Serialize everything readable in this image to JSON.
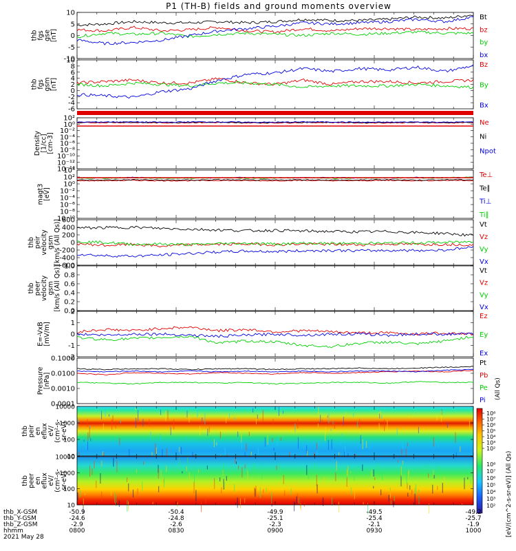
{
  "title": "P1 (TH-B) fields and ground moments overview",
  "colors": {
    "black": "#000000",
    "red": "#e00000",
    "green": "#00d000",
    "blue": "#0000e0"
  },
  "chart_data": [
    {
      "type": "line",
      "panel": "fgs-gse",
      "ylabel_lines": [
        "thb",
        "fgs",
        "gse",
        "[nT]"
      ],
      "ylim": [
        -10,
        10
      ],
      "yticks": [
        "10",
        "5",
        "0",
        "-5",
        "-10"
      ],
      "legend": [
        {
          "label": "Bt",
          "color": "#000000"
        },
        {
          "label": "bz",
          "color": "#e00000"
        },
        {
          "label": "by",
          "color": "#00d000"
        },
        {
          "label": "bx",
          "color": "#0000e0"
        }
      ],
      "series": [
        {
          "name": "Bt",
          "color": "#000000",
          "values": [
            4.5,
            5,
            6,
            5.5,
            5.5,
            6,
            5.5,
            6,
            7,
            6.5,
            6.5,
            7,
            8,
            7.5,
            9
          ]
        },
        {
          "name": "bz",
          "color": "#e00000",
          "values": [
            2.5,
            2,
            3.5,
            2,
            2.5,
            3.5,
            2,
            1.5,
            3,
            2,
            3,
            3,
            2.5,
            3,
            3
          ]
        },
        {
          "name": "by",
          "color": "#00d000",
          "values": [
            -0.5,
            1,
            0.5,
            1,
            -0.5,
            0.5,
            1,
            0.5,
            0,
            1,
            0.5,
            1,
            1.5,
            1,
            1
          ]
        },
        {
          "name": "bx",
          "color": "#0000e0",
          "values": [
            -2,
            -3.5,
            -3,
            -2,
            0,
            2,
            3,
            4,
            5.5,
            5,
            5.5,
            6,
            7,
            6,
            8
          ]
        }
      ]
    },
    {
      "type": "line",
      "panel": "fgs-gsm",
      "ylabel_lines": [
        "thb",
        "fgs",
        "gsm",
        "[nT]"
      ],
      "ylim": [
        -7,
        10
      ],
      "yticks": [
        "10",
        "8",
        "6",
        "4",
        "2",
        "0",
        "-2",
        "-4",
        "-6"
      ],
      "legend": [
        {
          "label": "Bz",
          "color": "#e00000"
        },
        {
          "label": "By",
          "color": "#00d000"
        },
        {
          "label": "Bx",
          "color": "#0000e0"
        }
      ],
      "series": [
        {
          "name": "Bz",
          "color": "#e00000",
          "values": [
            2,
            2.5,
            3,
            2,
            2,
            3.5,
            2,
            1.5,
            3,
            1.5,
            2.5,
            2.5,
            2,
            2.5,
            3
          ]
        },
        {
          "name": "By",
          "color": "#00d000",
          "values": [
            1.5,
            1,
            2,
            1.5,
            1,
            2,
            2,
            1.5,
            0.5,
            1,
            1,
            1,
            1.5,
            1,
            0.5
          ]
        },
        {
          "name": "Bx",
          "color": "#0000e0",
          "values": [
            -2,
            -2.5,
            -3,
            -1,
            0,
            3,
            5,
            5.5,
            7,
            6,
            7,
            6.5,
            7.5,
            6,
            8
          ]
        }
      ]
    },
    {
      "type": "line",
      "panel": "density",
      "ylabel_lines": [
        "Density",
        "[1/cc]",
        "[cm-3]"
      ],
      "ylim": [
        -14,
        2
      ],
      "log": true,
      "yticks": [
        "10²",
        "10⁰",
        "10⁻²",
        "10⁻⁴",
        "10⁻⁶",
        "10⁻⁸",
        "10⁻¹⁰",
        "10⁻¹²",
        "10⁻¹⁴"
      ],
      "legend": [
        {
          "label": "Ne",
          "color": "#e00000"
        },
        {
          "label": "Ni",
          "color": "#000000"
        },
        {
          "label": "Npot",
          "color": "#0000e0"
        },
        {
          "label": "",
          "color": "#000000"
        }
      ],
      "series": [
        {
          "name": "Ne",
          "color": "#e00000",
          "values": [
            0.4,
            0.5,
            0.5,
            0.4,
            0.5,
            0.5,
            0.4,
            0.4,
            0.5,
            0.5,
            0.4,
            0.4,
            0.5,
            0.4,
            0.5
          ]
        },
        {
          "name": "Ni",
          "color": "#000000",
          "values": [
            0.5,
            0.6,
            0.6,
            0.5,
            0.6,
            0.6,
            0.5,
            0.5,
            0.6,
            0.6,
            0.5,
            0.5,
            0.6,
            0.5,
            0.6
          ]
        },
        {
          "name": "Npot",
          "color": "#0000e0",
          "values": [
            0.6,
            0.7,
            0.7,
            0.6,
            0.7,
            0.7,
            0.6,
            0.6,
            0.7,
            0.7,
            0.6,
            0.6,
            0.7,
            0.6,
            0.7
          ]
        }
      ]
    },
    {
      "type": "line",
      "panel": "temperature",
      "ylabel_lines": [
        "magt3",
        "[eV]"
      ],
      "ylim": [
        -10,
        5
      ],
      "log": true,
      "yticks": [
        "10⁴",
        "10²",
        "10⁰",
        "10⁻²",
        "10⁻⁴",
        "10⁻⁶",
        "10⁻⁸",
        "10⁻¹⁰"
      ],
      "legend": [
        {
          "label": "Te⊥",
          "color": "#e00000"
        },
        {
          "label": "Te∥",
          "color": "#000000"
        },
        {
          "label": "Ti⊥",
          "color": "#0000e0"
        },
        {
          "label": "Ti∥",
          "color": "#00d000"
        }
      ],
      "series": [
        {
          "name": "Te⊥",
          "color": "#e00000",
          "values": [
            1.7,
            1.7,
            1.8,
            1.7,
            1.7,
            1.8,
            1.7,
            1.7,
            1.8,
            1.7,
            1.7,
            1.8,
            1.7,
            1.8,
            1.8
          ]
        },
        {
          "name": "Te∥",
          "color": "#000000",
          "values": [
            1.9,
            1.9,
            2,
            1.9,
            1.9,
            2,
            1.9,
            1.9,
            2,
            1.9,
            1.9,
            2,
            1.9,
            2,
            2
          ]
        },
        {
          "name": "Ti⊥",
          "color": "#0000e0",
          "values": [
            2.6,
            2.6,
            2.7,
            2.6,
            2.6,
            2.6,
            2.7,
            2.6,
            2.6,
            2.7,
            2.6,
            2.6,
            2.7,
            2.6,
            2.7
          ]
        },
        {
          "name": "Ti∥",
          "color": "#00d000",
          "values": [
            2.5,
            2.5,
            2.6,
            2.5,
            2.5,
            2.6,
            2.5,
            2.5,
            2.6,
            2.5,
            2.5,
            2.6,
            2.5,
            2.6,
            2.8
          ]
        }
      ]
    },
    {
      "type": "line",
      "panel": "peir-velocity",
      "ylabel_lines": [
        "thb",
        "peir",
        "velocity",
        "gsm",
        "[km/s (All Qs)]"
      ],
      "ylim": [
        -600,
        600
      ],
      "yticks": [
        "600",
        "400",
        "200",
        "0",
        "-200",
        "-400",
        "-600"
      ],
      "legend": [
        {
          "label": "Vt",
          "color": "#000000"
        },
        {
          "label": "Vz",
          "color": "#e00000"
        },
        {
          "label": "Vy",
          "color": "#00d000"
        },
        {
          "label": "Vx",
          "color": "#0000e0"
        }
      ],
      "series": [
        {
          "name": "Vt",
          "color": "#000000",
          "values": [
            380,
            390,
            400,
            370,
            350,
            330,
            310,
            320,
            300,
            290,
            280,
            290,
            260,
            240,
            180
          ]
        },
        {
          "name": "Vz",
          "color": "#e00000",
          "values": [
            -30,
            -80,
            -50,
            -100,
            -60,
            -50,
            -40,
            -60,
            -40,
            -50,
            -60,
            -40,
            -50,
            -50,
            -60
          ]
        },
        {
          "name": "Vy",
          "color": "#00d000",
          "values": [
            20,
            0,
            -50,
            -40,
            -60,
            -30,
            -20,
            -40,
            -20,
            -30,
            -20,
            -20,
            -10,
            0,
            20
          ]
        },
        {
          "name": "Vx",
          "color": "#0000e0",
          "values": [
            -310,
            -350,
            -360,
            -330,
            -290,
            -250,
            -230,
            -240,
            -220,
            -210,
            -220,
            -210,
            -210,
            -200,
            -120
          ]
        }
      ]
    },
    {
      "type": "line",
      "panel": "peer-velocity",
      "ylabel_lines": [
        "thb",
        "peer",
        "velocity",
        "gsm",
        "[km/s (All Qs)]"
      ],
      "ylim": [
        0,
        1
      ],
      "yticks": [
        "1.0",
        "0.8",
        "0.6",
        "0.4",
        "0.2",
        "0.0"
      ],
      "legend": [
        {
          "label": "Vt",
          "color": "#000000"
        },
        {
          "label": "Vz",
          "color": "#e00000"
        },
        {
          "label": "Vy",
          "color": "#00d000"
        },
        {
          "label": "Vx",
          "color": "#0000e0"
        }
      ],
      "series": []
    },
    {
      "type": "line",
      "panel": "efield",
      "ylabel_lines": [
        "E=-VxB",
        "[mV/m]"
      ],
      "ylim": [
        -2,
        2
      ],
      "yticks": [
        "2",
        "1",
        "0",
        "-1",
        "-2"
      ],
      "legend": [
        {
          "label": "Ez",
          "color": "#e00000"
        },
        {
          "label": "Ey",
          "color": "#00d000"
        },
        {
          "label": "Ex",
          "color": "#0000e0"
        }
      ],
      "series": [
        {
          "name": "Ez",
          "color": "#e00000",
          "values": [
            0.2,
            0.4,
            0.3,
            0.5,
            0.6,
            0.3,
            0.4,
            0.2,
            0.3,
            0.2,
            0.1,
            0.1,
            0,
            0.1,
            0
          ]
        },
        {
          "name": "Ey",
          "color": "#00d000",
          "values": [
            -0.3,
            -0.5,
            -0.4,
            -0.3,
            -0.2,
            -0.8,
            -0.6,
            -0.7,
            -1,
            -1.1,
            -0.8,
            -0.7,
            -0.9,
            -0.6,
            -0.2
          ]
        },
        {
          "name": "Ex",
          "color": "#0000e0",
          "values": [
            0,
            -0.1,
            0,
            0,
            -0.1,
            -0.2,
            -0.1,
            0,
            -0.1,
            0,
            0,
            -0.1,
            0,
            0,
            0
          ]
        }
      ]
    },
    {
      "type": "line",
      "panel": "pressure",
      "ylabel_lines": [
        "Pressure",
        "[nPa]"
      ],
      "ylim": [
        -4,
        -1
      ],
      "log": true,
      "yticks": [
        "0.1000",
        "0.0100",
        "0.0010",
        "0.0001"
      ],
      "legend": [
        {
          "label": "Pt",
          "color": "#000000"
        },
        {
          "label": "Pb",
          "color": "#e00000"
        },
        {
          "label": "Pe",
          "color": "#00d000"
        },
        {
          "label": "Pi",
          "color": "#0000e0"
        }
      ],
      "side_label": "(All Qs)",
      "series": [
        {
          "name": "Pt",
          "color": "#000000",
          "values": [
            -1.7,
            -1.75,
            -1.7,
            -1.7,
            -1.75,
            -1.7,
            -1.7,
            -1.75,
            -1.7,
            -1.7,
            -1.65,
            -1.7,
            -1.65,
            -1.6,
            -1.55
          ]
        },
        {
          "name": "Pb",
          "color": "#e00000",
          "values": [
            -2,
            -2.1,
            -1.95,
            -2,
            -2.05,
            -1.95,
            -2,
            -2.05,
            -1.95,
            -2,
            -1.95,
            -1.9,
            -1.85,
            -1.9,
            -1.8
          ]
        },
        {
          "name": "Pe",
          "color": "#00d000",
          "values": [
            -2.6,
            -2.65,
            -2.7,
            -2.6,
            -2.6,
            -2.65,
            -2.6,
            -2.7,
            -2.65,
            -2.6,
            -2.6,
            -2.65,
            -2.55,
            -2.6,
            -2.6
          ]
        },
        {
          "name": "Pi",
          "color": "#0000e0",
          "values": [
            -1.85,
            -1.9,
            -1.85,
            -1.9,
            -1.85,
            -1.9,
            -1.85,
            -1.9,
            -1.85,
            -1.9,
            -1.85,
            -1.85,
            -1.9,
            -1.8,
            -1.75
          ]
        }
      ]
    },
    {
      "type": "heatmap",
      "panel": "peir-eflux",
      "ylabel_lines": [
        "thb",
        "peir",
        "en",
        "eflux",
        "eV/",
        "(cm²-s-",
        "sr-eV)"
      ],
      "ylim": [
        5,
        20000
      ],
      "log": true,
      "yticks": [
        "10000",
        "1000",
        "100",
        "10"
      ],
      "colorbar_label": "[eV/(cm^2-s-sr-eV)] (All Qs)"
    },
    {
      "type": "heatmap",
      "panel": "peer-eflux",
      "ylabel_lines": [
        "thb",
        "peer",
        "en",
        "eflux",
        "eV/",
        "(cm²-s-",
        "sr-eV)"
      ],
      "ylim": [
        5,
        20000
      ],
      "log": true,
      "yticks": [
        "10000",
        "1000",
        "100",
        "10"
      ],
      "colorbar_label": "[eV/(cm^2-s-sr-eV)]"
    }
  ],
  "colorbar_ticks": [
    "10⁸",
    "10⁷",
    "10⁶",
    "10⁵",
    "10⁴",
    "10³",
    "10²"
  ],
  "xaxis": {
    "row_labels": [
      "thb_X-GSM",
      "thb_Y-GSM",
      "thb_Z-GSM",
      "hhmm",
      "2021 May 28"
    ],
    "ticks": [
      {
        "x": "-50.9",
        "y": "-24.6",
        "z": "-2.9",
        "t": "0800"
      },
      {
        "x": "-50.4",
        "y": "-24.8",
        "z": "-2.6",
        "t": "0830"
      },
      {
        "x": "-49.9",
        "y": "-25.1",
        "z": "-2.3",
        "t": "0900"
      },
      {
        "x": "-49.5",
        "y": "-25.4",
        "z": "-2.1",
        "t": "0930"
      },
      {
        "x": "-49.2",
        "y": "-25.7",
        "z": "-1.9",
        "t": "1000"
      }
    ]
  },
  "eflux_units_label": "[eV/(cm^2-s-sr-eV)]"
}
